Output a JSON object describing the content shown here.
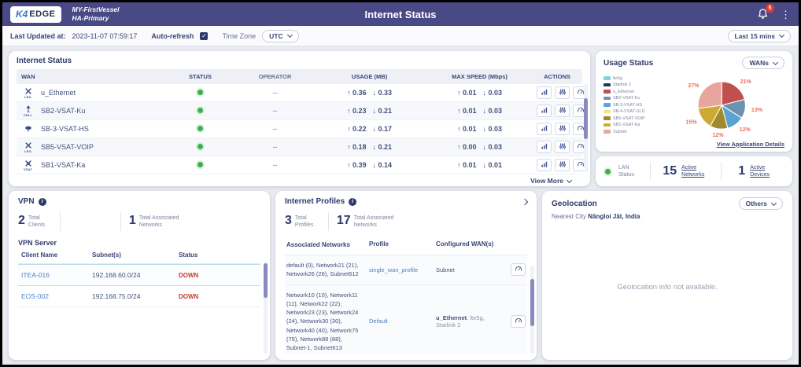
{
  "icons": {
    "menu-dots": "⋮",
    "arrow-right": "→",
    "arrow-up": "↑",
    "arrow-down": "↓",
    "check": "✓",
    "info": "i"
  },
  "header": {
    "logo_k4": "K4",
    "logo_edge": "EDGE",
    "vessel_name": "MY-FirstVessel",
    "vessel_sub": "HA-Primary",
    "title": "Internet Status",
    "notification_count": "5"
  },
  "toolbar": {
    "last_updated_label": "Last Updated at:",
    "last_updated_value": "2023-11-07 07:59:17",
    "auto_refresh_label": "Auto-refresh",
    "auto_refresh_checked": true,
    "time_zone_label": "Time Zone",
    "time_zone_value": "UTC",
    "range_value": "Last 15 mins"
  },
  "internet_status": {
    "title": "Internet Status",
    "columns": [
      "WAN",
      "STATUS",
      "OPERATOR",
      "USAGE (MB)",
      "MAX SPEED (Mbps)",
      "ACTIONS"
    ],
    "rows": [
      {
        "name": "u_Ethernet",
        "icon": "leo-satellite",
        "icon_label": "LEO",
        "status": "up",
        "operator": "--",
        "usage_up": "0.36",
        "usage_down": "0.33",
        "speed_up": "0.01",
        "speed_down": "0.03"
      },
      {
        "name": "SB2-VSAT-Ku",
        "icon": "cell-antenna",
        "icon_label": "CELL",
        "status": "up",
        "operator": "--",
        "usage_up": "0.23",
        "usage_down": "0.21",
        "speed_up": "0.01",
        "speed_down": "0.03"
      },
      {
        "name": "SB-3-VSAT-HS",
        "icon": "dish",
        "icon_label": "",
        "status": "up",
        "operator": "--",
        "usage_up": "0.22",
        "usage_down": "0.17",
        "speed_up": "0.01",
        "speed_down": "0.03"
      },
      {
        "name": "SB5-VSAT-VOIP",
        "icon": "leo-satellite",
        "icon_label": "LEO",
        "status": "up",
        "operator": "--",
        "usage_up": "0.18",
        "usage_down": "0.21",
        "speed_up": "0.00",
        "speed_down": "0.03"
      },
      {
        "name": "SB1-VSAT-Ka",
        "icon": "vsat",
        "icon_label": "VSAT",
        "status": "up",
        "operator": "--",
        "usage_up": "0.39",
        "usage_down": "0.14",
        "speed_up": "0.01",
        "speed_down": "0.01"
      }
    ],
    "action_names": [
      "statistics",
      "configure",
      "speed-test",
      "enable-toggle",
      "details"
    ],
    "view_more_label": "View More"
  },
  "usage_status": {
    "title": "Usage Status",
    "filter_value": "WANs",
    "details_link": "View Application Details"
  },
  "chart_data": {
    "type": "pie",
    "title": "Usage Status (WANs)",
    "labels": [
      "u_Ethernet",
      "SB2-VSAT-Ku",
      "SB-3-VSAT-HS",
      "SB5-VSAT-VOIP",
      "SB1-VSAT-Ka",
      "Subnet"
    ],
    "values": [
      21,
      13,
      12,
      12,
      15,
      27
    ],
    "unit": "%",
    "colors": [
      "#c0504d",
      "#6d92b0",
      "#5ba3d0",
      "#a3892e",
      "#ccaa33",
      "#e8a59e"
    ],
    "label_color": "#e8705f",
    "legend_position": "left",
    "legend": [
      {
        "label": "lte5g",
        "color": "#7fd4dc"
      },
      {
        "label": "Starlink 2",
        "color": "#1f3864"
      },
      {
        "label": "u_Ethernet",
        "color": "#c0504d"
      },
      {
        "label": "SB2-VSAT-Ku",
        "color": "#6d92b0"
      },
      {
        "label": "SB-3-VSAT-HS",
        "color": "#5ba3d0"
      },
      {
        "label": "SB-4-VSAT-ULD",
        "color": "#f2e394"
      },
      {
        "label": "SB5-VSAT-VOIP",
        "color": "#a3892e"
      },
      {
        "label": "SB1-VSAT-Ka",
        "color": "#ccaa33"
      },
      {
        "label": "Subnet",
        "color": "#e8a59e"
      }
    ]
  },
  "lan_status": {
    "label": "LAN Status",
    "active_networks_value": "15",
    "active_networks_label": "Active Networks",
    "active_devices_value": "1",
    "active_devices_label": "Active Devices"
  },
  "vpn": {
    "title": "VPN",
    "clients_value": "2",
    "clients_label": "Total Clients",
    "networks_value": "1",
    "networks_label": "Total Associated Networks",
    "server_label": "VPN Server",
    "columns": [
      "Client Name",
      "Subnet(s)",
      "Status"
    ],
    "rows": [
      {
        "client": "ITEA-016",
        "subnet": "192.168.60.0/24",
        "status": "DOWN"
      },
      {
        "client": "EOS-002",
        "subnet": "192.168.75.0/24",
        "status": "DOWN"
      }
    ]
  },
  "internet_profiles": {
    "title": "Internet Profiles",
    "profiles_value": "3",
    "profiles_label": "Total Profiles",
    "networks_value": "17",
    "networks_label": "Total Associated Networks",
    "columns": [
      "Associated Networks",
      "Profile",
      "Configured WAN(s)"
    ],
    "rows": [
      {
        "networks": "default (0), Network21 (21), Network26 (26), Subnet612",
        "profile": "single_wan_profile",
        "wans_primary": "Subnet",
        "wans_primary_bold": false,
        "wans_rest": ""
      },
      {
        "networks": "Network10 (10), Network11 (11), Network22 (22), Network23 (23), Network24 (24), Network30 (30), Network40 (40), Network75 (75), Network88 (88), Subnet-1, Subnet613",
        "profile": "Default",
        "wans_primary": "u_Ethernet",
        "wans_primary_bold": true,
        "wans_rest": ", lte5g, Starlink 2"
      }
    ]
  },
  "geolocation": {
    "title": "Geolocation",
    "filter_value": "Others",
    "nearest_city_label": "Nearest City",
    "nearest_city_value": "Nāngloi Jāt, India",
    "empty_message": "Geolocation info not available."
  }
}
